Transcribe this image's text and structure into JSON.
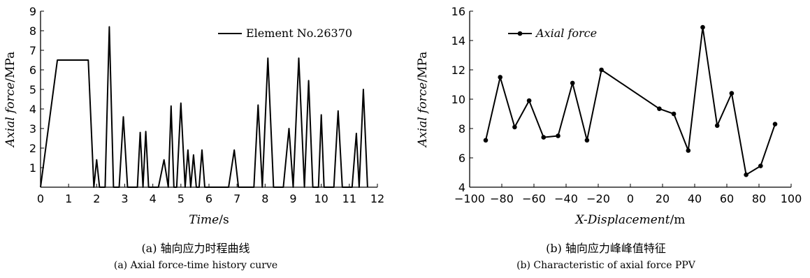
{
  "figures": [
    {
      "caption_cn": "(a) 轴向应力时程曲线",
      "caption_en": "(a) Axial force-time history curve"
    },
    {
      "caption_cn": "(b) 轴向应力峰峰值特征",
      "caption_en": "(b) Characteristic of axial force PPV"
    }
  ],
  "chart_data": [
    {
      "type": "line",
      "title": "",
      "xlabel_italic": "Time",
      "xlabel_unit": "/s",
      "ylabel_italic": "Axial force",
      "ylabel_unit": "/MPa",
      "xlim": [
        0,
        12
      ],
      "ylim": [
        0,
        9
      ],
      "xticks": [
        "0",
        "1",
        "2",
        "3",
        "4",
        "5",
        "6",
        "7",
        "8",
        "9",
        "10",
        "11",
        "12"
      ],
      "yticks": [
        "1",
        "2",
        "3",
        "4",
        "5",
        "6",
        "7",
        "8",
        "9"
      ],
      "legend_position": "top-right",
      "grid": false,
      "series": [
        {
          "name": "Element No.26370",
          "x": [
            0,
            0.6,
            1.7,
            1.9,
            2.0,
            2.1,
            2.3,
            2.45,
            2.6,
            2.8,
            2.95,
            3.1,
            3.45,
            3.55,
            3.65,
            3.75,
            3.85,
            4.2,
            4.4,
            4.55,
            4.65,
            4.75,
            4.85,
            5.0,
            5.15,
            5.25,
            5.35,
            5.45,
            5.55,
            5.65,
            5.75,
            5.85,
            5.95,
            6.7,
            6.9,
            7.05,
            7.6,
            7.75,
            7.9,
            8.1,
            8.3,
            8.65,
            8.85,
            9.0,
            9.2,
            9.4,
            9.55,
            9.7,
            9.9,
            10.0,
            10.1,
            10.45,
            10.6,
            10.75,
            11.1,
            11.25,
            11.35,
            11.5,
            11.65
          ],
          "y": [
            0,
            6.5,
            6.5,
            0,
            1.4,
            0,
            0,
            8.2,
            0,
            0,
            3.6,
            0,
            0,
            2.8,
            0,
            2.85,
            0,
            0,
            1.4,
            0,
            4.15,
            0,
            0,
            4.3,
            0,
            1.9,
            0,
            1.65,
            0,
            0,
            1.9,
            0,
            0,
            0,
            1.9,
            0,
            0,
            4.2,
            0,
            6.6,
            0,
            0,
            3.0,
            0,
            6.6,
            0,
            5.45,
            0,
            0,
            3.7,
            0,
            0,
            3.9,
            0,
            0,
            2.75,
            0,
            5.0,
            0
          ]
        }
      ]
    },
    {
      "type": "line",
      "title": "",
      "xlabel_italic": "X-Displacement",
      "xlabel_unit": "/m",
      "ylabel_italic": "Axial force",
      "ylabel_unit": "/MPa",
      "xlim": [
        -100,
        100
      ],
      "ylim": [
        4,
        16
      ],
      "xticks": [
        "−100",
        "−80",
        "−60",
        "−40",
        "−20",
        "0",
        "20",
        "40",
        "60",
        "80",
        "100"
      ],
      "yticks": [
        "4",
        "6",
        "8",
        "10",
        "12",
        "14",
        "16"
      ],
      "legend_position": "top-left",
      "grid": false,
      "series": [
        {
          "name": "Axial force",
          "markers": true,
          "x": [
            -90,
            -81,
            -72,
            -63,
            -54,
            -45,
            -36,
            -27,
            -18,
            18,
            27,
            36,
            45,
            54,
            63,
            72,
            81,
            90
          ],
          "y": [
            7.2,
            11.5,
            8.1,
            9.9,
            7.4,
            7.5,
            11.1,
            7.2,
            12.0,
            9.35,
            9.0,
            6.5,
            14.9,
            8.2,
            10.4,
            4.85,
            5.45,
            8.3
          ]
        }
      ]
    }
  ]
}
